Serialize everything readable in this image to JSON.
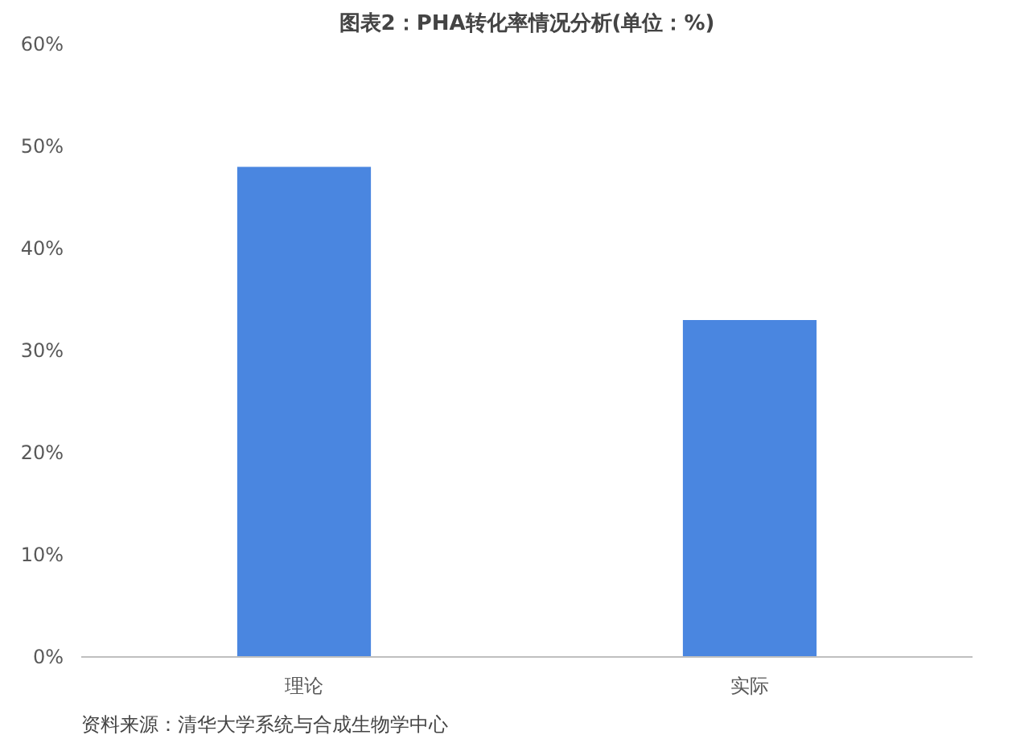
{
  "chart_data": {
    "type": "bar",
    "title": "图表2：PHA转化率情况分析(单位：%)",
    "categories": [
      "理论",
      "实际"
    ],
    "values": [
      48,
      33
    ],
    "color": "#4a86e0",
    "ylim": [
      0,
      60
    ],
    "yticks": [
      {
        "value": 0,
        "label": "0%"
      },
      {
        "value": 10,
        "label": "10%"
      },
      {
        "value": 20,
        "label": "20%"
      },
      {
        "value": 30,
        "label": "30%"
      },
      {
        "value": 40,
        "label": "40%"
      },
      {
        "value": 50,
        "label": "50%"
      },
      {
        "value": 60,
        "label": "60%"
      }
    ],
    "annotations": [
      "资料来源：清华大学系统与合成生物学中心"
    ]
  }
}
